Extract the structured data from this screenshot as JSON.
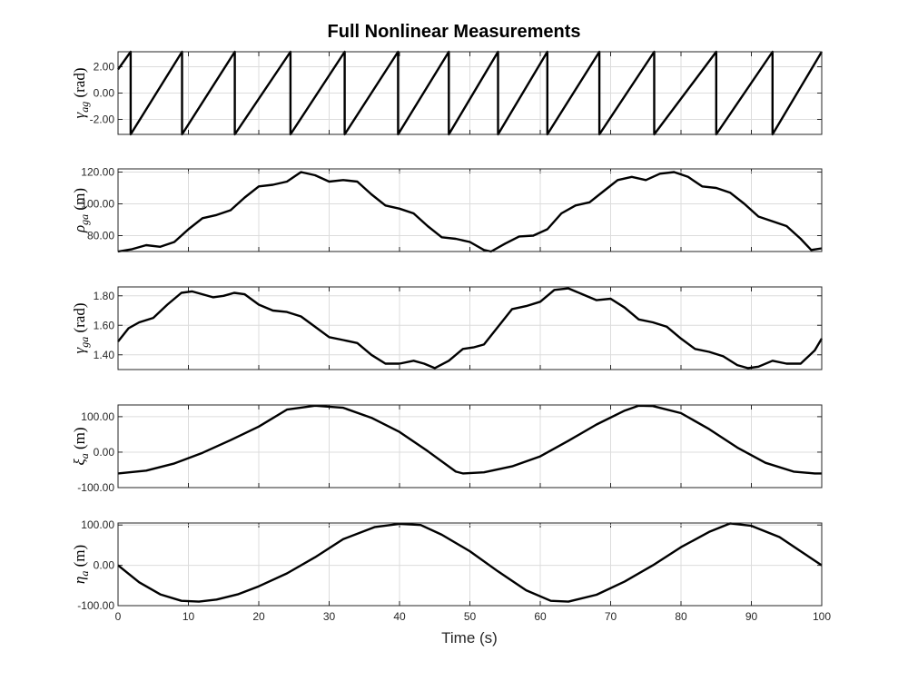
{
  "chart_data": {
    "type": "line",
    "title": "Full Nonlinear Measurements",
    "xlabel": "Time (s)",
    "xlim": [
      0,
      100
    ],
    "xticks": [
      0,
      10,
      20,
      30,
      40,
      50,
      60,
      70,
      80,
      90,
      100
    ],
    "xtick_labels": [
      "0",
      "10",
      "20",
      "30",
      "40",
      "50",
      "60",
      "70",
      "80",
      "90",
      "100"
    ],
    "grid": true,
    "subplots": [
      {
        "ylabel_symbol": "γ",
        "ylabel_subscript": "ag",
        "ylabel_unit": "(rad)",
        "ylim": [
          -3.14,
          3.14
        ],
        "yticks": [
          2,
          0,
          -2
        ],
        "ytick_labels": [
          "2.00",
          "0.00",
          "-2.00"
        ],
        "x": [
          0,
          1.8,
          1.8,
          9.1,
          9.1,
          16.6,
          16.6,
          24.5,
          24.5,
          32.2,
          32.2,
          39.8,
          39.8,
          47.0,
          47.0,
          54.0,
          54.0,
          61.0,
          61.0,
          68.4,
          68.4,
          76.2,
          76.2,
          85.0,
          85.0,
          93.0,
          93.0,
          100
        ],
        "y": [
          1.8,
          3.14,
          -3.14,
          3.14,
          -3.14,
          3.14,
          -3.14,
          3.14,
          -3.14,
          3.14,
          -3.14,
          3.14,
          -3.14,
          3.14,
          -3.14,
          3.14,
          -3.14,
          3.14,
          -3.14,
          3.14,
          -3.14,
          3.14,
          -3.14,
          3.14,
          -3.14,
          3.14,
          -3.14,
          3.14
        ]
      },
      {
        "ylabel_symbol": "ρ",
        "ylabel_subscript": "ga",
        "ylabel_unit": "(m)",
        "ylim": [
          70,
          122
        ],
        "yticks": [
          120,
          100,
          80
        ],
        "ytick_labels": [
          "120.00",
          "100.00",
          "80.00"
        ],
        "x": [
          0,
          2,
          4,
          6,
          8,
          10,
          12,
          14,
          16,
          18,
          20,
          22,
          24,
          26,
          28,
          30,
          32,
          34,
          36,
          38,
          40,
          42,
          44,
          46,
          48,
          50,
          52,
          53,
          55,
          57,
          59,
          61,
          63,
          65,
          67,
          69,
          71,
          73,
          75,
          77,
          79,
          81,
          83,
          85,
          87,
          89,
          91,
          93,
          95,
          97,
          98.5,
          100
        ],
        "y": [
          70,
          71.5,
          74,
          73,
          76,
          84,
          91,
          93,
          96,
          104,
          111,
          112,
          114,
          120,
          118,
          114,
          115,
          114,
          106,
          99,
          97,
          94,
          86,
          79,
          78,
          76,
          71,
          70,
          75,
          79.5,
          80,
          84,
          94,
          99,
          101,
          108,
          115,
          117,
          115,
          119,
          120,
          117,
          111,
          110,
          107,
          100,
          92,
          89,
          86,
          78,
          71,
          72
        ]
      },
      {
        "ylabel_symbol": "γ",
        "ylabel_subscript": "ga",
        "ylabel_unit": "(rad)",
        "ylim": [
          1.3,
          1.86
        ],
        "yticks": [
          1.8,
          1.6,
          1.4
        ],
        "ytick_labels": [
          "1.80",
          "1.60",
          "1.40"
        ],
        "x": [
          0,
          1.5,
          3,
          5,
          7,
          9,
          10.5,
          12,
          13.5,
          15,
          16.5,
          18,
          20,
          22,
          24,
          26,
          28,
          30,
          32,
          34,
          36,
          38,
          40,
          42,
          43.5,
          45,
          47,
          49,
          50.5,
          52,
          54,
          56,
          58,
          60,
          62,
          64,
          66,
          68,
          70,
          72,
          74,
          76,
          78,
          80,
          82,
          84,
          86,
          88,
          89.5,
          91,
          93,
          95,
          97,
          99,
          100
        ],
        "y": [
          1.49,
          1.58,
          1.62,
          1.65,
          1.74,
          1.82,
          1.83,
          1.81,
          1.79,
          1.8,
          1.82,
          1.81,
          1.74,
          1.7,
          1.69,
          1.66,
          1.59,
          1.52,
          1.5,
          1.48,
          1.4,
          1.34,
          1.34,
          1.36,
          1.34,
          1.31,
          1.36,
          1.44,
          1.45,
          1.47,
          1.59,
          1.71,
          1.73,
          1.76,
          1.84,
          1.85,
          1.81,
          1.77,
          1.78,
          1.72,
          1.64,
          1.62,
          1.59,
          1.51,
          1.44,
          1.42,
          1.39,
          1.33,
          1.31,
          1.32,
          1.36,
          1.34,
          1.34,
          1.43,
          1.51
        ]
      },
      {
        "ylabel_symbol": "ξ",
        "ylabel_subscript": "a",
        "ylabel_unit": "(m)",
        "ylim": [
          -100,
          133
        ],
        "yticks": [
          100,
          0,
          -100
        ],
        "ytick_labels": [
          "100.00",
          "0.00",
          "-100.00"
        ],
        "x": [
          0,
          4,
          8,
          12,
          16,
          20,
          24,
          28,
          32,
          36,
          40,
          44,
          48,
          49,
          52,
          56,
          60,
          64,
          68,
          72,
          74,
          76,
          80,
          84,
          88,
          92,
          96,
          99,
          100
        ],
        "y": [
          -60,
          -52,
          -32,
          -2,
          34,
          72,
          120,
          131,
          125,
          97,
          57,
          3,
          -55,
          -60,
          -57,
          -40,
          -12,
          32,
          78,
          117,
          131,
          130,
          110,
          65,
          13,
          -30,
          -55,
          -60,
          -60
        ]
      },
      {
        "ylabel_symbol": "η",
        "ylabel_subscript": "a",
        "ylabel_unit": "(m)",
        "ylim": [
          -100,
          105
        ],
        "yticks": [
          100,
          0,
          -100
        ],
        "ytick_labels": [
          "100.00",
          "0.00",
          "-100.00"
        ],
        "x": [
          0,
          3,
          6,
          9,
          11.5,
          14,
          17,
          20,
          24,
          28,
          32,
          36.5,
          40,
          43,
          46,
          50,
          54,
          58,
          61.5,
          64,
          68,
          72,
          76,
          80,
          84,
          87,
          90,
          94,
          97,
          100
        ],
        "y": [
          0,
          -42,
          -72,
          -88,
          -90,
          -85,
          -72,
          -52,
          -20,
          20,
          65,
          95,
          103,
          100,
          76,
          35,
          -15,
          -62,
          -88,
          -90,
          -73,
          -40,
          0,
          45,
          83,
          104,
          98,
          70,
          35,
          0
        ]
      }
    ]
  }
}
